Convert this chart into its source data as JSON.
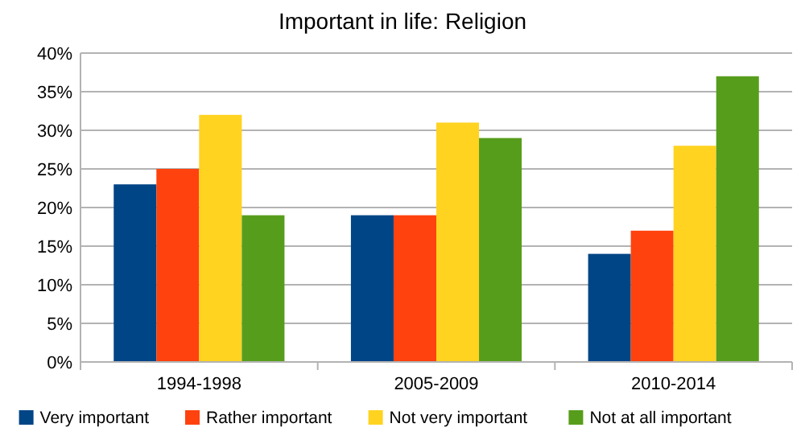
{
  "chart_data": {
    "type": "bar",
    "title": "Important in life: Religion",
    "categories": [
      "1994-1998",
      "2005-2009",
      "2010-2014"
    ],
    "series": [
      {
        "name": "Very important",
        "color": "#004586",
        "values": [
          23,
          19,
          14
        ]
      },
      {
        "name": "Rather important",
        "color": "#ff420e",
        "values": [
          25,
          19,
          17
        ]
      },
      {
        "name": "Not very important",
        "color": "#ffd320",
        "values": [
          32,
          31,
          28
        ]
      },
      {
        "name": "Not at all important",
        "color": "#579d1c",
        "values": [
          19,
          29,
          37
        ]
      }
    ],
    "ylim": [
      0,
      40
    ],
    "yticks": [
      {
        "value": 0,
        "label": "0%"
      },
      {
        "value": 5,
        "label": "5%"
      },
      {
        "value": 10,
        "label": "10%"
      },
      {
        "value": 15,
        "label": "15%"
      },
      {
        "value": 20,
        "label": "20%"
      },
      {
        "value": 25,
        "label": "25%"
      },
      {
        "value": 30,
        "label": "30%"
      },
      {
        "value": 35,
        "label": "35%"
      },
      {
        "value": 40,
        "label": "40%"
      }
    ],
    "grid": "y",
    "legend": "bottom"
  }
}
